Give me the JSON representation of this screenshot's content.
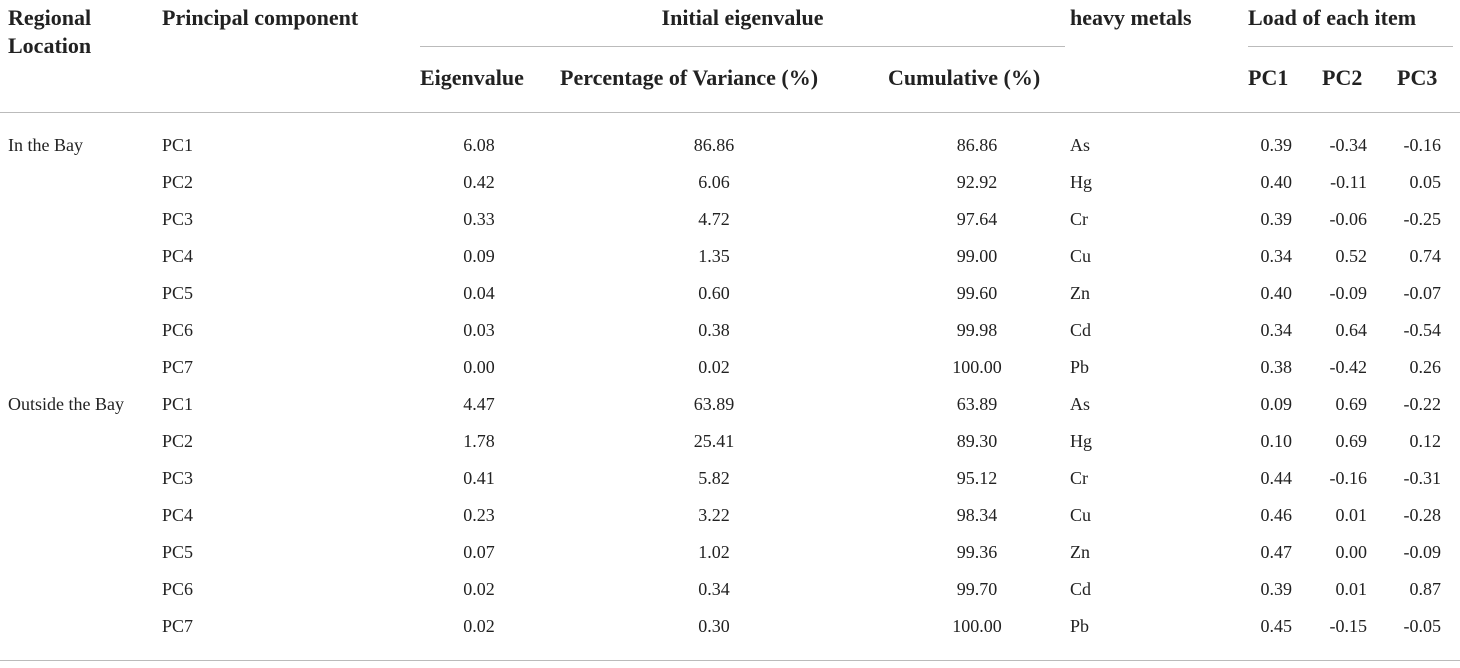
{
  "table": {
    "headers": {
      "region": "Regional Location",
      "component": "Principal component",
      "eigen_group": "Initial eigenvalue",
      "eigenvalue": "Eigenvalue",
      "variance": "Percentage of Variance (%)",
      "cumulative": "Cumulative (%)",
      "metals": "heavy metals",
      "load_group": "Load of each item",
      "pc1": "PC1",
      "pc2": "PC2",
      "pc3": "PC3"
    },
    "groups": [
      {
        "region": "In the Bay",
        "rows": [
          [
            "PC1",
            "6.08",
            "86.86",
            "86.86",
            "As",
            "0.39",
            "-0.34",
            "-0.16"
          ],
          [
            "PC2",
            "0.42",
            "6.06",
            "92.92",
            "Hg",
            "0.40",
            "-0.11",
            "0.05"
          ],
          [
            "PC3",
            "0.33",
            "4.72",
            "97.64",
            "Cr",
            "0.39",
            "-0.06",
            "-0.25"
          ],
          [
            "PC4",
            "0.09",
            "1.35",
            "99.00",
            "Cu",
            "0.34",
            "0.52",
            "0.74"
          ],
          [
            "PC5",
            "0.04",
            "0.60",
            "99.60",
            "Zn",
            "0.40",
            "-0.09",
            "-0.07"
          ],
          [
            "PC6",
            "0.03",
            "0.38",
            "99.98",
            "Cd",
            "0.34",
            "0.64",
            "-0.54"
          ],
          [
            "PC7",
            "0.00",
            "0.02",
            "100.00",
            "Pb",
            "0.38",
            "-0.42",
            "0.26"
          ]
        ]
      },
      {
        "region": "Outside the Bay",
        "rows": [
          [
            "PC1",
            "4.47",
            "63.89",
            "63.89",
            "As",
            "0.09",
            "0.69",
            "-0.22"
          ],
          [
            "PC2",
            "1.78",
            "25.41",
            "89.30",
            "Hg",
            "0.10",
            "0.69",
            "0.12"
          ],
          [
            "PC3",
            "0.41",
            "5.82",
            "95.12",
            "Cr",
            "0.44",
            "-0.16",
            "-0.31"
          ],
          [
            "PC4",
            "0.23",
            "3.22",
            "98.34",
            "Cu",
            "0.46",
            "0.01",
            "-0.28"
          ],
          [
            "PC5",
            "0.07",
            "1.02",
            "99.36",
            "Zn",
            "0.47",
            "0.00",
            "-0.09"
          ],
          [
            "PC6",
            "0.02",
            "0.34",
            "99.70",
            "Cd",
            "0.39",
            "0.01",
            "0.87"
          ],
          [
            "PC7",
            "0.02",
            "0.30",
            "100.00",
            "Pb",
            "0.45",
            "-0.15",
            "-0.05"
          ]
        ]
      }
    ]
  }
}
